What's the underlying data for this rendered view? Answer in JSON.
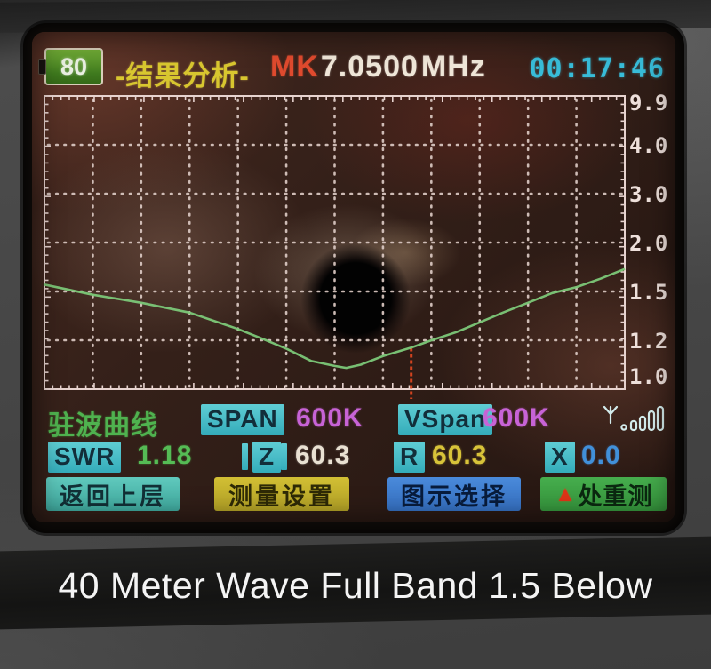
{
  "header": {
    "battery_level": "80",
    "screen_title": "-结果分析-",
    "marker_prefix": "MK",
    "marker_frequency": "7.0500",
    "frequency_unit": "MHz",
    "clock": "00:17:46"
  },
  "chart_data": {
    "type": "line",
    "title": "SWR sweep curve (驻波曲线)",
    "xlabel": "frequency, 600K span around marker 7.0500 MHz",
    "ylabel": "SWR",
    "y_ticks": [
      9.9,
      4.0,
      3.0,
      2.0,
      1.5,
      1.2,
      1.0
    ],
    "ylim": [
      1.0,
      9.9
    ],
    "grid": "dotted",
    "columns": 12,
    "legend": "none",
    "marker": {
      "label": "MK",
      "frequency_mhz": 7.05,
      "fraction": 0.632,
      "swr": 1.18
    },
    "series": [
      {
        "name": "SWR",
        "color": "#7cc878",
        "points": [
          [
            0.0,
            1.57
          ],
          [
            0.083,
            1.48
          ],
          [
            0.167,
            1.43
          ],
          [
            0.25,
            1.37
          ],
          [
            0.333,
            1.27
          ],
          [
            0.375,
            1.21
          ],
          [
            0.417,
            1.165
          ],
          [
            0.46,
            1.115
          ],
          [
            0.5,
            1.095
          ],
          [
            0.52,
            1.087
          ],
          [
            0.545,
            1.1
          ],
          [
            0.583,
            1.135
          ],
          [
            0.632,
            1.17
          ],
          [
            0.667,
            1.2
          ],
          [
            0.71,
            1.25
          ],
          [
            0.75,
            1.31
          ],
          [
            0.79,
            1.37
          ],
          [
            0.833,
            1.43
          ],
          [
            0.875,
            1.49
          ],
          [
            0.917,
            1.545
          ],
          [
            0.958,
            1.63
          ],
          [
            1.0,
            1.73
          ]
        ]
      }
    ]
  },
  "status": {
    "curve_label": "驻波曲线",
    "span": {
      "label": "SPAN",
      "value": "600K"
    },
    "vspan": {
      "label": "VSpan",
      "value": "600K"
    },
    "swr": {
      "label": "SWR",
      "value": "1.18"
    },
    "impedance": {
      "label": "Z",
      "value": "60.3"
    },
    "resistance": {
      "label": "R",
      "value": "60.3"
    },
    "reactance": {
      "label": "X",
      "value": "0.0"
    },
    "antenna_icon": "antenna-signal-icon"
  },
  "buttons": [
    {
      "label": "返回上层",
      "color": "#4fbdb1"
    },
    {
      "label": "测量设置",
      "color": "#c4b22d"
    },
    {
      "label": "图示选择",
      "color": "#3f7bcd"
    },
    {
      "label": "处重测",
      "prefix": "▲",
      "color": "#3da244"
    }
  ],
  "caption": "40 Meter Wave Full Band 1.5 Below",
  "colors": {
    "screen_bg": "#33201a",
    "grid_dots": "#dbc9c3",
    "plot_border": "#e7d3cf",
    "curve": "#7cc878",
    "marker_line": "#d2431f",
    "title_yellow": "#d8c62f",
    "mk_red": "#df4a2e",
    "freq_white": "#efe6d8",
    "clock_cyan": "#38bcd8",
    "badge_cyan": "#47bcc8",
    "value_magenta": "#c763d6",
    "value_green": "#55bb55",
    "value_yellow": "#d8c339",
    "value_blue": "#4190d9",
    "caption_white": "#f4f4f4"
  }
}
